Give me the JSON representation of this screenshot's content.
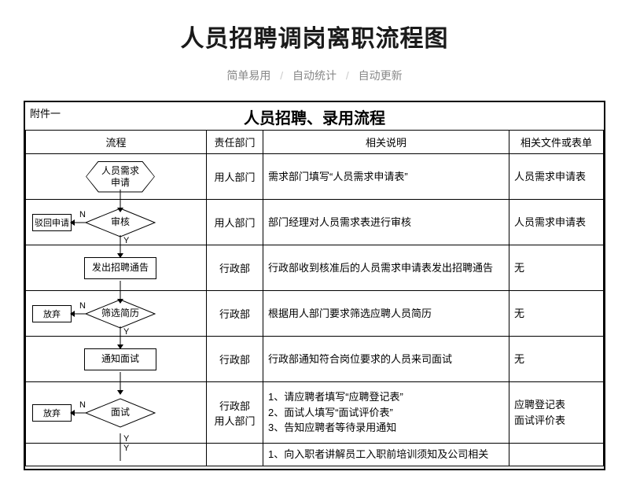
{
  "page_title": "人员招聘调岗离职流程图",
  "subtitle": {
    "a": "简单易用",
    "b": "自动统计",
    "c": "自动更新",
    "sep": "/"
  },
  "annex": "附件一",
  "sheet_title": "人员招聘、录用流程",
  "headers": {
    "flow": "流程",
    "dept": "责任部门",
    "desc": "相关说明",
    "doc": "相关文件或表单"
  },
  "labels": {
    "N": "N",
    "Y": "Y"
  },
  "rows": [
    {
      "shape": "hexagon",
      "shape_label": "人员需求\n申请",
      "side": null,
      "dept": "用人部门",
      "desc": "需求部门填写“人员需求申请表”",
      "doc": "人员需求申请表",
      "y_below": false
    },
    {
      "shape": "diamond",
      "shape_label": "审核",
      "side": "驳回申请",
      "dept": "用人部门",
      "desc": "部门经理对人员需求表进行审核",
      "doc": "人员需求申请表",
      "y_below": true
    },
    {
      "shape": "rect",
      "shape_label": "发出招聘通告",
      "side": null,
      "dept": "行政部",
      "desc": "行政部收到核准后的人员需求申请表发出招聘通告",
      "doc": "无",
      "y_below": false
    },
    {
      "shape": "diamond",
      "shape_label": "筛选简历",
      "side": "放弃",
      "dept": "行政部",
      "desc": "根据用人部门要求筛选应聘人员简历",
      "doc": "无",
      "y_below": true
    },
    {
      "shape": "rect",
      "shape_label": "通知面试",
      "side": null,
      "dept": "行政部",
      "desc": "行政部通知符合岗位要求的人员来司面试",
      "doc": "无",
      "y_below": false
    },
    {
      "shape": "diamond",
      "shape_label": "面试",
      "side": "放弃",
      "dept": "行政部\n用人部门",
      "desc": "1、请应聘者填写“应聘登记表”\n2、面试人填写“面试评价表”\n3、告知应聘者等待录用通知",
      "doc": "应聘登记表\n面试评价表",
      "y_below": true
    }
  ],
  "cut_row": {
    "desc": "1、向入职者讲解员工入职前培训须知及公司相关"
  },
  "colors": {
    "text": "#1a1a1a",
    "muted": "#888888",
    "sep": "#cccccc",
    "border": "#000000",
    "bg": "#ffffff"
  },
  "fonts": {
    "title_pt": 30,
    "sub_pt": 14,
    "sheet_title_pt": 20,
    "cell_pt": 13,
    "shape_pt": 12
  }
}
